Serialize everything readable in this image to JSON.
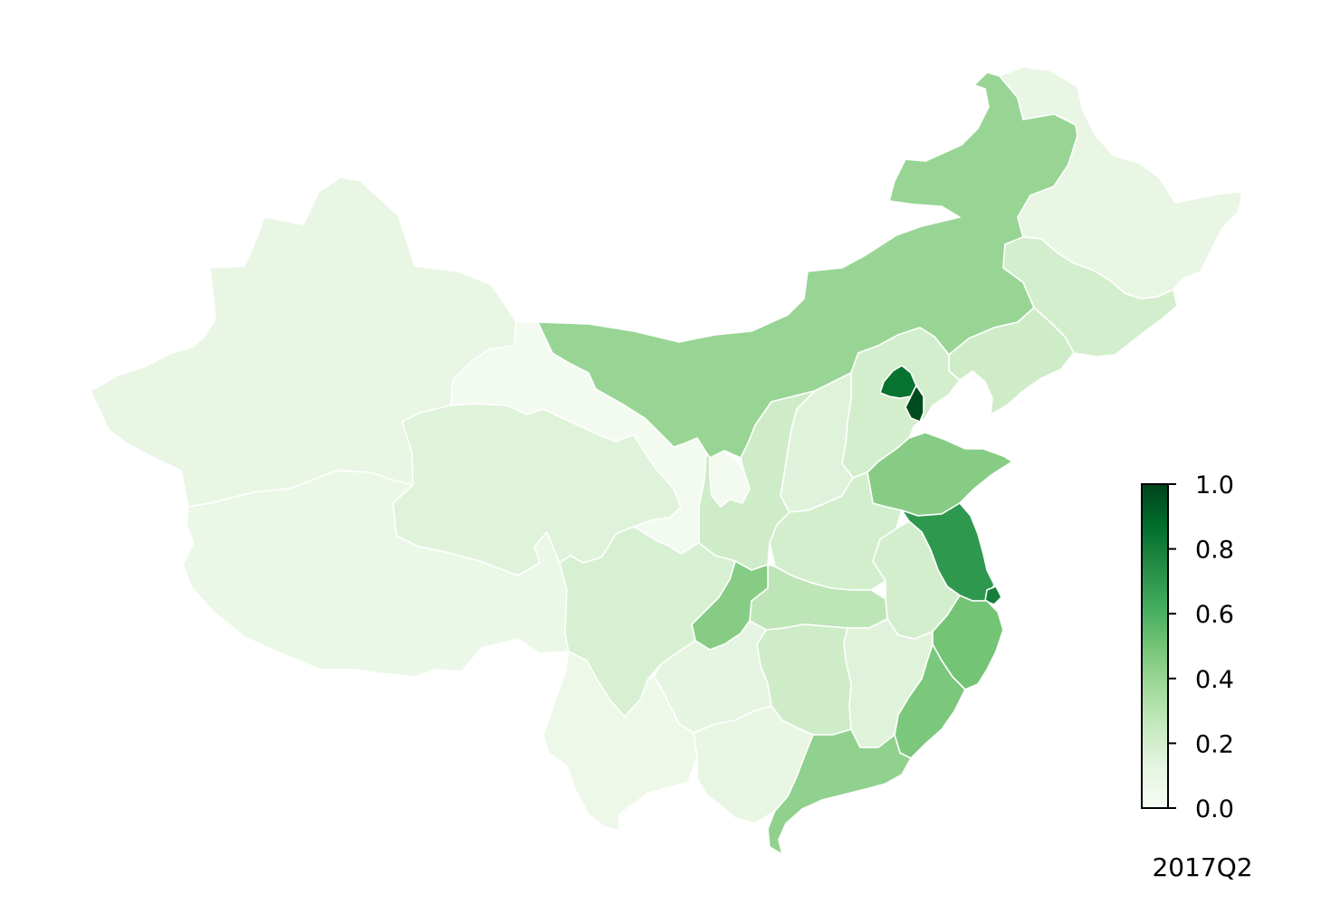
{
  "map": {
    "period": "2017Q2",
    "colormap": "Greens",
    "value_range": [
      0.0,
      1.0
    ],
    "color_stops": [
      "#f7fcf5",
      "#e5f5e0",
      "#c7e9c0",
      "#a1d99b",
      "#74c476",
      "#41ab5d",
      "#238b45",
      "#006d2c",
      "#00441b"
    ],
    "border_color": "#ffffff",
    "regions": [
      {
        "id": "xinjiang",
        "value": 0.1
      },
      {
        "id": "tibet",
        "value": 0.08
      },
      {
        "id": "qinghai",
        "value": 0.15
      },
      {
        "id": "gansu",
        "value": 0.03
      },
      {
        "id": "ningxia",
        "value": 0.03
      },
      {
        "id": "inner-mongolia",
        "value": 0.4
      },
      {
        "id": "heilongjiang",
        "value": 0.1
      },
      {
        "id": "jilin",
        "value": 0.2
      },
      {
        "id": "liaoning",
        "value": 0.22
      },
      {
        "id": "hebei",
        "value": 0.2
      },
      {
        "id": "beijing",
        "value": 0.85
      },
      {
        "id": "tianjin",
        "value": 0.98
      },
      {
        "id": "shanxi",
        "value": 0.15
      },
      {
        "id": "shaanxi",
        "value": 0.22
      },
      {
        "id": "shandong",
        "value": 0.45
      },
      {
        "id": "henan",
        "value": 0.2
      },
      {
        "id": "jiangsu",
        "value": 0.7
      },
      {
        "id": "shanghai",
        "value": 0.8
      },
      {
        "id": "anhui",
        "value": 0.2
      },
      {
        "id": "hubei",
        "value": 0.28
      },
      {
        "id": "chongqing",
        "value": 0.45
      },
      {
        "id": "sichuan",
        "value": 0.18
      },
      {
        "id": "zhejiang",
        "value": 0.5
      },
      {
        "id": "fujian",
        "value": 0.48
      },
      {
        "id": "jiangxi",
        "value": 0.15
      },
      {
        "id": "hunan",
        "value": 0.22
      },
      {
        "id": "guizhou",
        "value": 0.12
      },
      {
        "id": "yunnan",
        "value": 0.07
      },
      {
        "id": "guangxi",
        "value": 0.1
      },
      {
        "id": "guangdong",
        "value": 0.42
      }
    ]
  },
  "colorbar": {
    "ticks": [
      {
        "value": 0.0,
        "label": "0.0"
      },
      {
        "value": 0.2,
        "label": "0.2"
      },
      {
        "value": 0.4,
        "label": "0.4"
      },
      {
        "value": 0.6,
        "label": "0.6"
      },
      {
        "value": 0.8,
        "label": "0.8"
      },
      {
        "value": 1.0,
        "label": "1.0"
      }
    ]
  }
}
